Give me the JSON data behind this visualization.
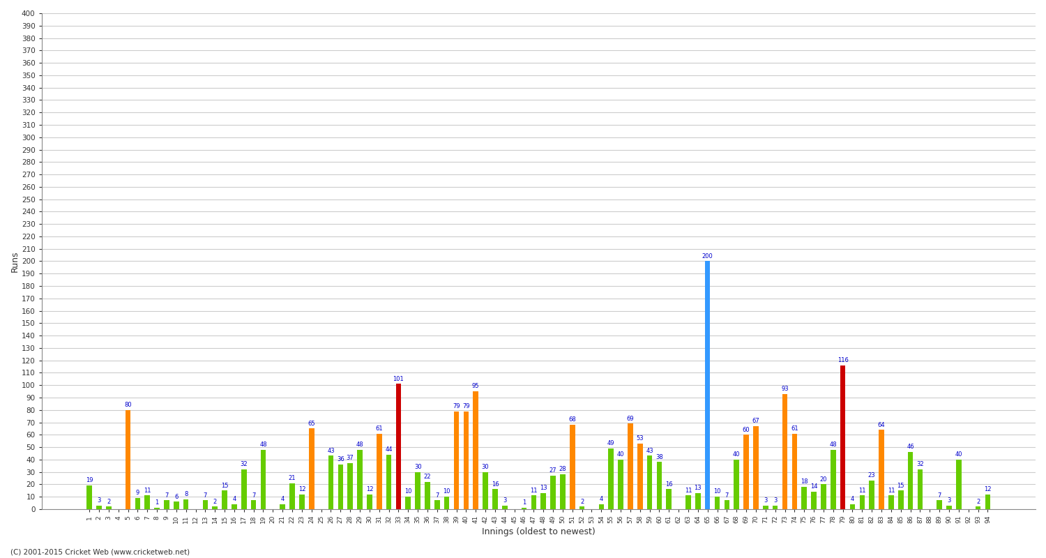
{
  "xlabel": "Innings (oldest to newest)",
  "ylabel": "Runs",
  "scores": [
    19,
    3,
    2,
    0,
    80,
    9,
    11,
    1,
    7,
    6,
    8,
    0,
    7,
    2,
    15,
    4,
    32,
    7,
    48,
    0,
    4,
    21,
    12,
    65,
    0,
    43,
    36,
    37,
    48,
    12,
    61,
    44,
    101,
    10,
    30,
    22,
    7,
    10,
    79,
    79,
    95,
    30,
    16,
    3,
    0,
    1,
    11,
    13,
    27,
    28,
    68,
    2,
    0,
    4,
    49,
    40,
    69,
    53,
    43,
    38,
    16,
    0,
    11,
    13,
    200,
    10,
    7,
    40,
    60,
    67,
    3,
    3,
    93,
    61,
    18,
    14,
    20,
    48,
    116,
    4,
    11,
    23,
    64,
    11,
    15,
    46,
    32,
    0,
    7,
    3,
    40,
    0,
    2,
    12
  ],
  "innings": [
    1,
    2,
    3,
    4,
    5,
    6,
    7,
    8,
    9,
    10,
    11,
    12,
    13,
    14,
    15,
    16,
    17,
    18,
    19,
    20,
    21,
    22,
    23,
    24,
    25,
    26,
    27,
    28,
    29,
    30,
    31,
    32,
    33,
    34,
    35,
    36,
    37,
    38,
    39,
    40,
    41,
    42,
    43,
    44,
    45,
    46,
    47,
    48,
    49,
    50,
    51,
    52,
    53,
    54,
    55,
    56,
    57,
    58,
    59,
    60,
    61,
    62,
    63,
    64,
    65,
    66,
    67,
    68,
    69,
    70,
    71,
    72,
    73,
    74,
    75,
    76,
    77,
    78,
    79,
    80,
    81,
    82,
    83,
    84,
    85,
    86,
    87,
    88,
    89,
    90,
    91,
    92,
    93,
    94
  ],
  "color_green": "#66cc00",
  "color_orange": "#ff8800",
  "color_red": "#cc0000",
  "color_blue": "#3399ff",
  "threshold_fifty": 50,
  "threshold_hundred": 100,
  "threshold_double": 200,
  "bg_color": "#ffffff",
  "grid_color": "#cccccc",
  "label_color": "#0000cc",
  "footer": "(C) 2001-2015 Cricket Web (www.cricketweb.net)",
  "ylim": [
    0,
    400
  ],
  "ytick_step": 10,
  "bar_width": 0.55,
  "figsize": [
    15.0,
    8.0
  ],
  "dpi": 100
}
